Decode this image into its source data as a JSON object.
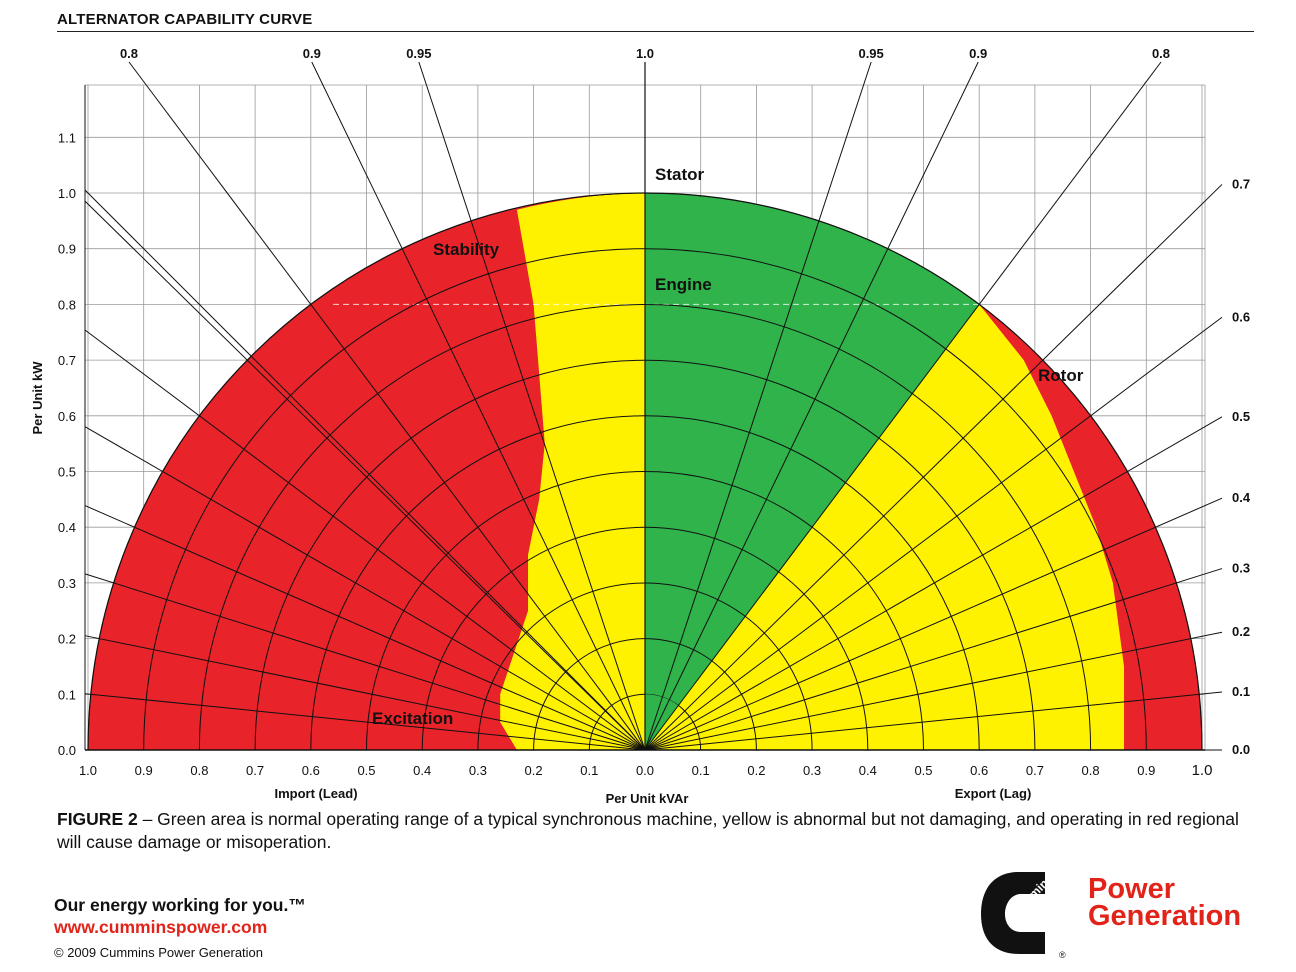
{
  "header": {
    "title": "ALTERNATOR CAPABILITY CURVE"
  },
  "caption": {
    "lead": "FIGURE 2",
    "text": " – Green area is normal operating range of a typical synchronous machine, yellow is abnormal but not damaging, and operating in red regional will cause damage or misoperation."
  },
  "footer": {
    "tagline": "Our energy working for you.™",
    "website": "www.cumminspower.com",
    "copyright": "© 2009 Cummins Power Generation"
  },
  "brand": {
    "line1": "Power",
    "line2": "Generation",
    "logo_text": "Cummins"
  },
  "chart_data": {
    "type": "area",
    "ylabel": "Per Unit kW",
    "xlabel": "Per Unit kVAr",
    "xlabel_left": "Import (Lead)",
    "xlabel_right": "Export (Lag)",
    "x_range": [
      -1.0,
      1.0
    ],
    "y_range": [
      0.0,
      1.0
    ],
    "x_tick_labels": [
      "1.0",
      "0.9",
      "0.8",
      "0.7",
      "0.6",
      "0.5",
      "0.4",
      "0.3",
      "0.2",
      "0.1",
      "0.0",
      "0.1",
      "0.2",
      "0.3",
      "0.4",
      "0.5",
      "0.6",
      "0.7",
      "0.8",
      "0.9",
      "1.0"
    ],
    "y_tick_labels": [
      "0.0",
      "0.1",
      "0.2",
      "0.3",
      "0.4",
      "0.5",
      "0.6",
      "0.7",
      "0.8",
      "0.9",
      "1.0",
      "1.1"
    ],
    "y_ticks": [
      0.0,
      0.1,
      0.2,
      0.3,
      0.4,
      0.5,
      0.6,
      0.7,
      0.8,
      0.9,
      1.0,
      1.1
    ],
    "top_pf_labels": [
      {
        "label": "0.8",
        "side": "lead",
        "pf": 0.8
      },
      {
        "label": "0.9",
        "side": "lead",
        "pf": 0.9
      },
      {
        "label": "0.95",
        "side": "lead",
        "pf": 0.95
      },
      {
        "label": "1.0",
        "side": "unity",
        "pf": 1.0
      },
      {
        "label": "0.95",
        "side": "lag",
        "pf": 0.95
      },
      {
        "label": "0.9",
        "side": "lag",
        "pf": 0.9
      },
      {
        "label": "0.8",
        "side": "lag",
        "pf": 0.8
      }
    ],
    "right_pf_labels": [
      "0.7",
      "0.6",
      "0.5",
      "0.4",
      "0.3",
      "0.2",
      "0.1",
      "0.0"
    ],
    "right_pf_values": [
      0.7,
      0.6,
      0.5,
      0.4,
      0.3,
      0.2,
      0.1,
      0.0
    ],
    "region_labels": [
      "Stator",
      "Engine",
      "Stability",
      "Rotor",
      "Excitation"
    ],
    "colors": {
      "green": "#2fb34a",
      "yellow": "#fff200",
      "red": "#e8232a",
      "grid": "#9a9a9a"
    },
    "regions": {
      "stator_radius": 1.0,
      "engine_limit_kw": 0.8,
      "stability_curve": [
        [
          -0.23,
          0.0
        ],
        [
          -0.26,
          0.05
        ],
        [
          -0.26,
          0.1
        ],
        [
          -0.21,
          0.25
        ],
        [
          -0.21,
          0.35
        ],
        [
          -0.19,
          0.45
        ],
        [
          -0.18,
          0.55
        ],
        [
          -0.2,
          0.8
        ],
        [
          -0.23,
          0.97
        ]
      ],
      "rotor_curve": [
        [
          0.6,
          0.8
        ],
        [
          0.68,
          0.7
        ],
        [
          0.73,
          0.6
        ],
        [
          0.77,
          0.5
        ],
        [
          0.81,
          0.4
        ],
        [
          0.84,
          0.3
        ],
        [
          0.86,
          0.15
        ],
        [
          0.86,
          0.0
        ]
      ],
      "excitation_circle_radius": 0.1,
      "green_lower_pf": 0.8
    }
  }
}
